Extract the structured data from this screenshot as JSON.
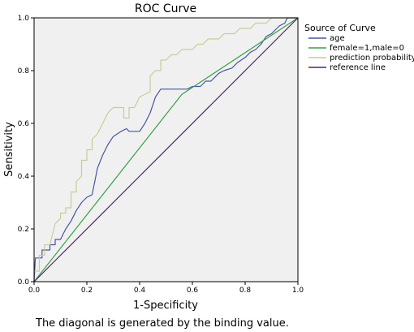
{
  "chart_data": {
    "type": "line",
    "title": "ROC Curve",
    "xlabel": "1-Specificity",
    "ylabel": "Sensitivity",
    "xlim": [
      0,
      1
    ],
    "ylim": [
      0,
      1
    ],
    "xticks": [
      "0.0",
      "0.2",
      "0.4",
      "0.6",
      "0.8",
      "1.0"
    ],
    "yticks": [
      "0.0",
      "0.2",
      "0.4",
      "0.6",
      "0.8",
      "1.0"
    ],
    "grid": false,
    "legend_position": "right",
    "legend_title": "Source of Curve",
    "plot_background": "#f0f0f0",
    "footnote": "The diagonal is generated by the binding value.",
    "series": [
      {
        "name": "age",
        "color": "#4a55a2",
        "points": [
          [
            0,
            0
          ],
          [
            0.005,
            0.09
          ],
          [
            0.03,
            0.09
          ],
          [
            0.03,
            0.12
          ],
          [
            0.06,
            0.12
          ],
          [
            0.06,
            0.14
          ],
          [
            0.08,
            0.14
          ],
          [
            0.08,
            0.16
          ],
          [
            0.1,
            0.16
          ],
          [
            0.12,
            0.2
          ],
          [
            0.14,
            0.23
          ],
          [
            0.16,
            0.27
          ],
          [
            0.18,
            0.3
          ],
          [
            0.2,
            0.32
          ],
          [
            0.22,
            0.33
          ],
          [
            0.23,
            0.38
          ],
          [
            0.24,
            0.43
          ],
          [
            0.26,
            0.48
          ],
          [
            0.28,
            0.52
          ],
          [
            0.3,
            0.55
          ],
          [
            0.33,
            0.57
          ],
          [
            0.35,
            0.58
          ],
          [
            0.36,
            0.57
          ],
          [
            0.4,
            0.57
          ],
          [
            0.42,
            0.6
          ],
          [
            0.44,
            0.64
          ],
          [
            0.46,
            0.7
          ],
          [
            0.48,
            0.73
          ],
          [
            0.55,
            0.73
          ],
          [
            0.58,
            0.73
          ],
          [
            0.6,
            0.74
          ],
          [
            0.63,
            0.74
          ],
          [
            0.65,
            0.76
          ],
          [
            0.67,
            0.76
          ],
          [
            0.7,
            0.79
          ],
          [
            0.72,
            0.8
          ],
          [
            0.75,
            0.81
          ],
          [
            0.77,
            0.83
          ],
          [
            0.8,
            0.85
          ],
          [
            0.82,
            0.87
          ],
          [
            0.84,
            0.88
          ],
          [
            0.86,
            0.9
          ],
          [
            0.88,
            0.93
          ],
          [
            0.9,
            0.94
          ],
          [
            0.92,
            0.96
          ],
          [
            0.93,
            0.97
          ],
          [
            0.95,
            0.98
          ],
          [
            0.96,
            1.0
          ],
          [
            1,
            1
          ]
        ]
      },
      {
        "name": "female=1,male=0",
        "color": "#3aa04a",
        "points": [
          [
            0,
            0
          ],
          [
            0.56,
            0.71
          ],
          [
            1,
            1
          ]
        ]
      },
      {
        "name": "prediction probability",
        "color": "#c8cc9a",
        "points": [
          [
            0,
            0
          ],
          [
            0,
            0.04
          ],
          [
            0.02,
            0.04
          ],
          [
            0.02,
            0.1
          ],
          [
            0.04,
            0.1
          ],
          [
            0.04,
            0.14
          ],
          [
            0.06,
            0.14
          ],
          [
            0.08,
            0.22
          ],
          [
            0.1,
            0.24
          ],
          [
            0.1,
            0.26
          ],
          [
            0.12,
            0.26
          ],
          [
            0.12,
            0.28
          ],
          [
            0.14,
            0.28
          ],
          [
            0.14,
            0.34
          ],
          [
            0.16,
            0.34
          ],
          [
            0.16,
            0.38
          ],
          [
            0.18,
            0.4
          ],
          [
            0.18,
            0.46
          ],
          [
            0.2,
            0.46
          ],
          [
            0.2,
            0.5
          ],
          [
            0.22,
            0.5
          ],
          [
            0.22,
            0.54
          ],
          [
            0.24,
            0.56
          ],
          [
            0.26,
            0.6
          ],
          [
            0.28,
            0.64
          ],
          [
            0.3,
            0.66
          ],
          [
            0.34,
            0.66
          ],
          [
            0.34,
            0.62
          ],
          [
            0.36,
            0.62
          ],
          [
            0.36,
            0.66
          ],
          [
            0.38,
            0.66
          ],
          [
            0.4,
            0.7
          ],
          [
            0.44,
            0.72
          ],
          [
            0.44,
            0.78
          ],
          [
            0.46,
            0.8
          ],
          [
            0.48,
            0.8
          ],
          [
            0.48,
            0.84
          ],
          [
            0.5,
            0.84
          ],
          [
            0.52,
            0.86
          ],
          [
            0.54,
            0.86
          ],
          [
            0.56,
            0.88
          ],
          [
            0.6,
            0.88
          ],
          [
            0.62,
            0.9
          ],
          [
            0.64,
            0.9
          ],
          [
            0.66,
            0.92
          ],
          [
            0.7,
            0.92
          ],
          [
            0.72,
            0.94
          ],
          [
            0.76,
            0.94
          ],
          [
            0.78,
            0.96
          ],
          [
            0.82,
            0.96
          ],
          [
            0.84,
            0.98
          ],
          [
            0.88,
            0.98
          ],
          [
            0.9,
            1.0
          ],
          [
            1,
            1
          ]
        ]
      },
      {
        "name": "reference line",
        "color": "#4a2a5e",
        "points": [
          [
            0,
            0
          ],
          [
            1,
            1
          ]
        ]
      }
    ]
  }
}
